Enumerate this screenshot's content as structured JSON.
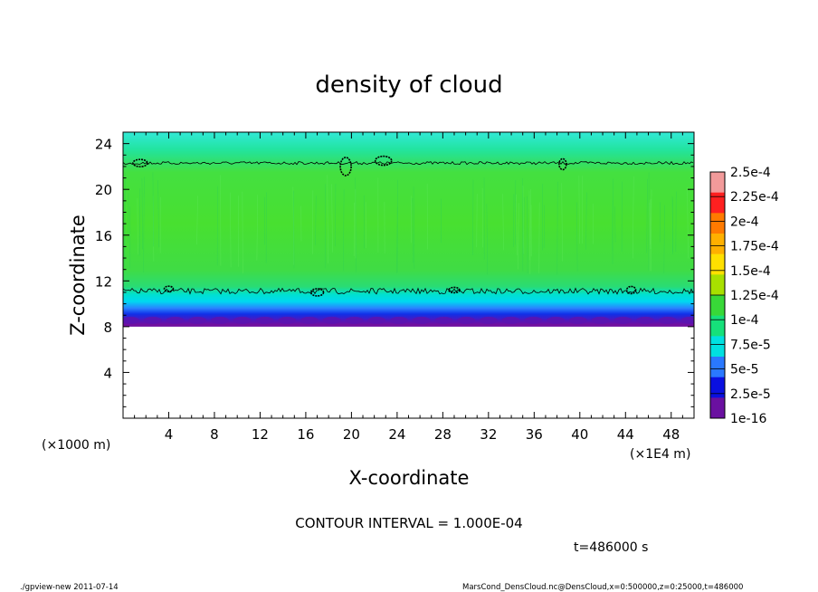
{
  "chart_data": {
    "type": "heatmap",
    "title": "density of cloud",
    "xlabel": "X-coordinate",
    "ylabel": "Z-coordinate",
    "xunit_left": "(×1000 m)",
    "xunit_right": "(×1E4 m)",
    "xlim": [
      0,
      50
    ],
    "ylim": [
      0,
      25
    ],
    "xticks": [
      4,
      8,
      12,
      16,
      20,
      24,
      28,
      32,
      36,
      40,
      44,
      48
    ],
    "yticks": [
      4,
      8,
      12,
      16,
      20,
      24
    ],
    "colorbar": {
      "labels": [
        "2.5e-4",
        "2.25e-4",
        "2e-4",
        "1.75e-4",
        "1.5e-4",
        "1.25e-4",
        "1e-4",
        "7.5e-5",
        "5e-5",
        "2.5e-5",
        "1e-16"
      ],
      "colors": [
        "#f29a9a",
        "#ff2020",
        "#ff7a00",
        "#ffb000",
        "#ffe000",
        "#a8e000",
        "#38d838",
        "#16e07a",
        "#00e0e0",
        "#2a78ff",
        "#0a10e0",
        "#6a10a0"
      ]
    },
    "profile": [
      {
        "z": 24.8,
        "color": "#30e8d0"
      },
      {
        "z": 23.5,
        "color": "#22e4a0"
      },
      {
        "z": 22.5,
        "color": "#30e070"
      },
      {
        "z": 21.5,
        "color": "#44e040"
      },
      {
        "z": 17.0,
        "color": "#48e030"
      },
      {
        "z": 13.0,
        "color": "#40dc44"
      },
      {
        "z": 11.5,
        "color": "#2adc74"
      },
      {
        "z": 10.8,
        "color": "#00e0d0"
      },
      {
        "z": 10.2,
        "color": "#00d8f0"
      },
      {
        "z": 9.6,
        "color": "#2a80ff"
      },
      {
        "z": 9.1,
        "color": "#1030e8"
      },
      {
        "z": 8.6,
        "color": "#4a18c0"
      },
      {
        "z": 8.2,
        "color": "#7010a0"
      },
      {
        "z": 8.0,
        "color": "#7010a0"
      }
    ],
    "contours": [
      {
        "level": "1.000E-04",
        "z": 22.3
      },
      {
        "level": "1.000E-04",
        "z": 11.1
      }
    ],
    "contour_interval": "CONTOUR INTERVAL = 1.000E-04",
    "time_label": "t=486000 s"
  },
  "footer": {
    "left": "./gpview-new   2011-07-14",
    "right": "MarsCond_DensCloud.nc@DensCloud,x=0:500000,z=0:25000,t=486000"
  }
}
